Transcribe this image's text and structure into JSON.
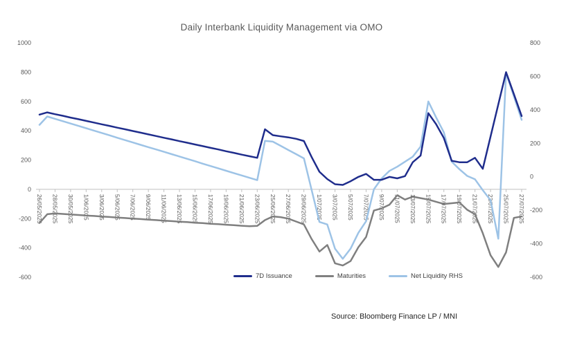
{
  "title": "Daily Interbank Liquidity Management via OMO",
  "source_note": "Source: Bloomberg Finance LP / MNI",
  "colors": {
    "issuance_7d": "#1F2D8C",
    "maturities": "#7F7F7F",
    "net_liquidity_rhs": "#9DC3E6",
    "axis_line": "#BFBFBF",
    "axis_text": "#595959",
    "title_text": "#595959",
    "legend_text": "#404040",
    "source_text": "#262626"
  },
  "legend": {
    "items": [
      {
        "label": "7D Issuance",
        "series": "issuance_7d"
      },
      {
        "label": "Maturities",
        "series": "maturities"
      },
      {
        "label": "Net Liquidity RHS",
        "series": "net_liquidity_rhs"
      }
    ],
    "position": "bottom"
  },
  "chart_data": {
    "type": "line",
    "title": "Daily Interbank Liquidity Management via OMO",
    "gridlines": false,
    "legend_position": "bottom",
    "x_tick_every": 2,
    "axes": {
      "left": {
        "min": -600,
        "max": 1000,
        "step": 200,
        "ticks": [
          1000,
          800,
          600,
          400,
          200,
          0,
          -200,
          -400,
          -600
        ]
      },
      "right": {
        "min": -600,
        "max": 800,
        "step": 200,
        "ticks": [
          800,
          600,
          400,
          200,
          0,
          -200,
          -400,
          -600
        ]
      }
    },
    "x": [
      "26/05/2025",
      "27/05/2025",
      "28/05/2025",
      "29/05/2025",
      "30/05/2025",
      "31/05/2025",
      "1/06/2025",
      "2/06/2025",
      "3/06/2025",
      "4/06/2025",
      "5/06/2025",
      "6/06/2025",
      "7/06/2025",
      "8/06/2025",
      "9/06/2025",
      "10/06/2025",
      "11/06/2025",
      "12/06/2025",
      "13/06/2025",
      "14/06/2025",
      "15/06/2025",
      "16/06/2025",
      "17/06/2025",
      "18/06/2025",
      "19/06/2025",
      "20/06/2025",
      "21/06/2025",
      "22/06/2025",
      "23/06/2025",
      "24/06/2025",
      "25/06/2025",
      "26/06/2025",
      "27/06/2025",
      "28/06/2025",
      "29/06/2025",
      "30/06/2025",
      "1/07/2025",
      "2/07/2025",
      "3/07/2025",
      "4/07/2025",
      "5/07/2025",
      "6/07/2025",
      "7/07/2025",
      "8/07/2025",
      "9/07/2025",
      "10/07/2025",
      "11/07/2025",
      "12/07/2025",
      "13/07/2025",
      "14/07/2025",
      "15/07/2025",
      "16/07/2025",
      "17/07/2025",
      "18/07/2025",
      "19/07/2025",
      "20/07/2025",
      "21/07/2025",
      "22/07/2025",
      "23/07/2025",
      "24/07/2025",
      "25/07/2025",
      "26/07/2025",
      "27/07/2025"
    ],
    "series": [
      {
        "name": "7D Issuance",
        "axis": "left",
        "color_key": "issuance_7d",
        "values": [
          510,
          525,
          513,
          502,
          490,
          479,
          467,
          456,
          444,
          433,
          421,
          410,
          398,
          387,
          375,
          364,
          352,
          341,
          329,
          318,
          306,
          295,
          283,
          272,
          260,
          249,
          237,
          226,
          215,
          410,
          370,
          362,
          355,
          345,
          330,
          220,
          120,
          70,
          35,
          30,
          55,
          85,
          105,
          65,
          65,
          85,
          75,
          90,
          185,
          230,
          520,
          445,
          350,
          195,
          185,
          185,
          215,
          140,
          360,
          580,
          800,
          650,
          500
        ]
      },
      {
        "name": "Maturities",
        "axis": "left",
        "color_key": "maturities",
        "values": [
          -230,
          -170,
          -165,
          -168,
          -172,
          -175,
          -179,
          -182,
          -186,
          -189,
          -193,
          -196,
          -200,
          -203,
          -207,
          -210,
          -214,
          -217,
          -221,
          -224,
          -228,
          -231,
          -235,
          -238,
          -242,
          -245,
          -249,
          -252,
          -250,
          -210,
          -185,
          -190,
          -200,
          -220,
          -240,
          -340,
          -425,
          -380,
          -505,
          -520,
          -490,
          -395,
          -325,
          -145,
          -130,
          -105,
          -40,
          -70,
          -50,
          -60,
          -70,
          -85,
          -100,
          -95,
          -90,
          -140,
          -170,
          -300,
          -450,
          -530,
          -430,
          -195,
          -185
        ]
      },
      {
        "name": "Net Liquidity RHS",
        "axis": "right",
        "color_key": "net_liquidity_rhs",
        "values": [
          310,
          360,
          346,
          332,
          318,
          304,
          290,
          276,
          262,
          248,
          233,
          219,
          205,
          191,
          177,
          163,
          149,
          135,
          121,
          107,
          93,
          78,
          64,
          50,
          36,
          22,
          8,
          -6,
          -20,
          215,
          210,
          185,
          160,
          135,
          110,
          -80,
          -270,
          -285,
          -430,
          -490,
          -430,
          -335,
          -265,
          -75,
          -10,
          35,
          60,
          90,
          120,
          180,
          450,
          355,
          265,
          90,
          45,
          5,
          -15,
          -80,
          -140,
          -370,
          620,
          480,
          340
        ]
      }
    ]
  }
}
